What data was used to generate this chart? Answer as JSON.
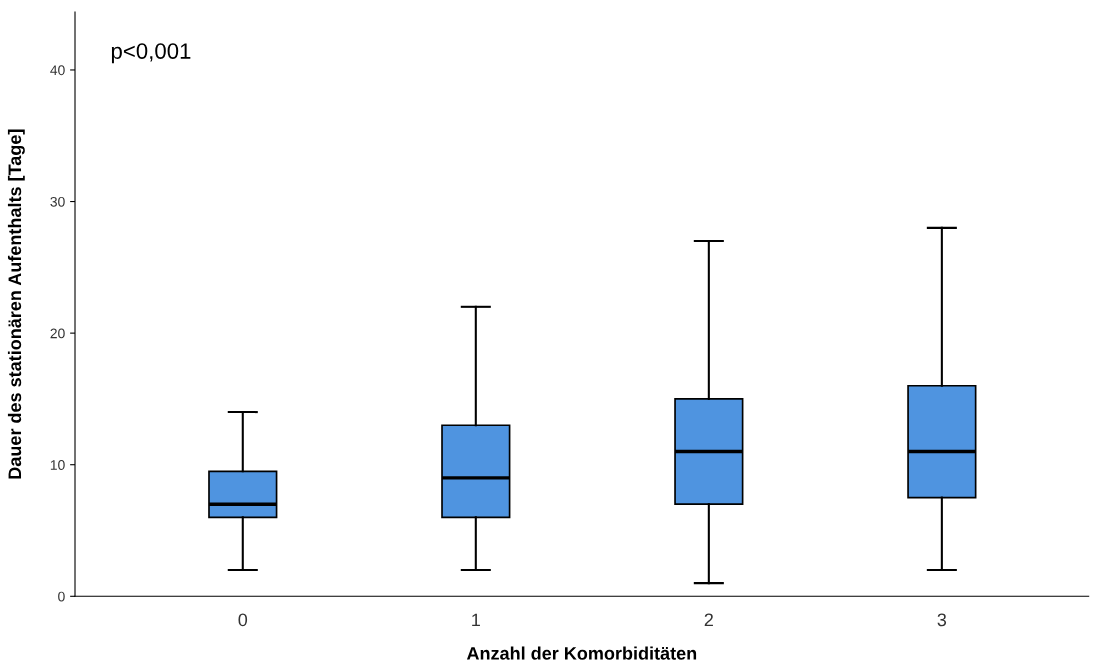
{
  "chart_data": {
    "type": "box",
    "xlabel": "Anzahl der Komorbiditäten",
    "ylabel": "Dauer des stationären Aufenthalts [Tage]",
    "categories": [
      "0",
      "1",
      "2",
      "3"
    ],
    "color": "#4f94e0",
    "ylim": [
      0,
      44.4
    ],
    "yticks": [
      0,
      10,
      20,
      30,
      40
    ],
    "grid": false,
    "annotations": [
      "p<0,001"
    ],
    "boxes": [
      {
        "low": 2,
        "q1": 6,
        "median": 7,
        "q3": 9.5,
        "high": 14
      },
      {
        "low": 2,
        "q1": 6,
        "median": 9,
        "q3": 13,
        "high": 22
      },
      {
        "low": 1,
        "q1": 7,
        "median": 11,
        "q3": 15,
        "high": 27
      },
      {
        "low": 2,
        "q1": 7.5,
        "median": 11,
        "q3": 16,
        "high": 28
      }
    ]
  }
}
